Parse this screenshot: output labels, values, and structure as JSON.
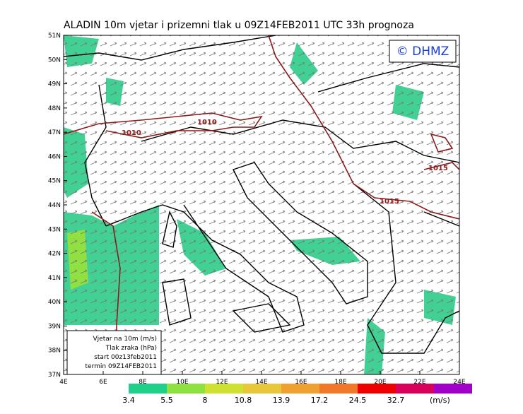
{
  "header": {
    "title": "ALADIN  10m  vjetar i prizemni tlak u 09Z14FEB2011 UTC 33h prognoza",
    "copyright": "© DHMZ"
  },
  "map": {
    "lat_labels": [
      "51N",
      "50N",
      "49N",
      "48N",
      "47N",
      "46N",
      "45N",
      "44N",
      "43N",
      "42N",
      "41N",
      "40N",
      "39N",
      "38N",
      "37N"
    ],
    "lon_labels": [
      "4E",
      "6E",
      "8E",
      "10E",
      "12E",
      "14E",
      "16E",
      "18E",
      "20E",
      "22E",
      "24E"
    ],
    "isobar_labels": [
      "1010",
      "1010",
      "1015",
      "1015"
    ]
  },
  "legend_box": {
    "lines": [
      "Vjetar na 10m (m/s)",
      "Tlak zraka (hPa)",
      "start 00z13feb2011",
      "termin 09Z14FEB2011"
    ]
  },
  "colorbar": {
    "labels": [
      "3.4",
      "5.5",
      "8",
      "10.8",
      "13.9",
      "17.2",
      "24.5",
      "32.7"
    ],
    "unit": "(m/s)",
    "colors": [
      "#1ed08a",
      "#8fe040",
      "#d0e030",
      "#e8c83a",
      "#f0a030",
      "#f07828",
      "#ee0000",
      "#d8005a",
      "#a000c8"
    ]
  }
}
